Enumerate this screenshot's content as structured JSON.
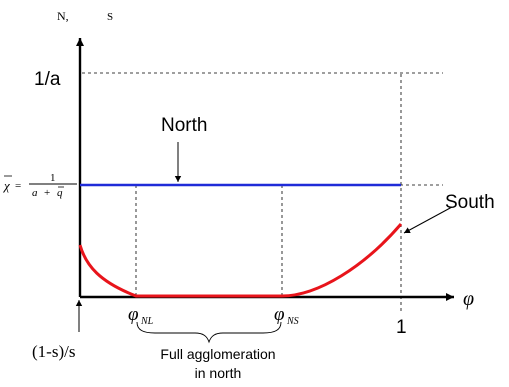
{
  "axes": {
    "y_label_n": "N,",
    "y_label_s": "S",
    "x_label": "φ",
    "y_top_label": "1/a",
    "x_end_label": "1",
    "origin_label": "(1-s)/s"
  },
  "chi_label": {
    "lhs": "χ",
    "eq": "=",
    "numerator": "1",
    "denominator_a": "a",
    "denominator_plus": "+",
    "denominator_q": "q"
  },
  "phi_labels": {
    "phi_nl_main": "φ",
    "phi_nl_sub": "NL",
    "phi_ns_main": "φ",
    "phi_ns_sub": "NS"
  },
  "curves": {
    "north_label": "North",
    "south_label": "South",
    "north_color": "#1f2bd8",
    "south_color": "#e8141b"
  },
  "annotation": {
    "line1": "Full agglomeration",
    "line2": "in north"
  }
}
